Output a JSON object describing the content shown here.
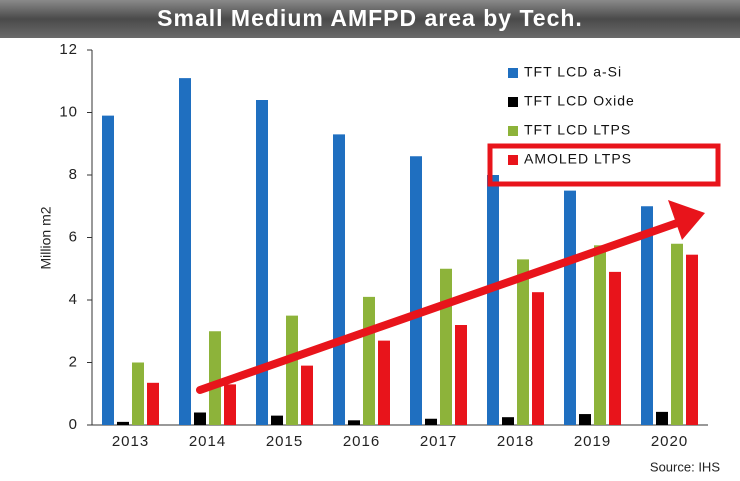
{
  "chart_data": {
    "type": "bar",
    "title": "Small Medium AMFPD area by Tech.",
    "y_label": "Million m2",
    "source": "Source: IHS",
    "categories": [
      "2013",
      "2014",
      "2015",
      "2016",
      "2017",
      "2018",
      "2019",
      "2020"
    ],
    "series": [
      {
        "name": "TFT LCD a-Si",
        "color": "#1f6fc0",
        "values": [
          9.9,
          11.1,
          10.4,
          9.3,
          8.6,
          8.0,
          7.5,
          7.0
        ]
      },
      {
        "name": "TFT LCD Oxide",
        "color": "#000000",
        "values": [
          0.1,
          0.4,
          0.3,
          0.15,
          0.2,
          0.25,
          0.35,
          0.42
        ]
      },
      {
        "name": "TFT LCD LTPS",
        "color": "#8db33a",
        "values": [
          2.0,
          3.0,
          3.5,
          4.1,
          5.0,
          5.3,
          5.75,
          5.8
        ]
      },
      {
        "name": "AMOLED LTPS",
        "color": "#e8141b",
        "values": [
          1.35,
          1.3,
          1.9,
          2.7,
          3.2,
          4.25,
          4.9,
          5.45
        ]
      }
    ],
    "ylim": [
      0,
      12
    ],
    "yticks": [
      0,
      2,
      4,
      6,
      8,
      10,
      12
    ],
    "legend": "upper right"
  }
}
